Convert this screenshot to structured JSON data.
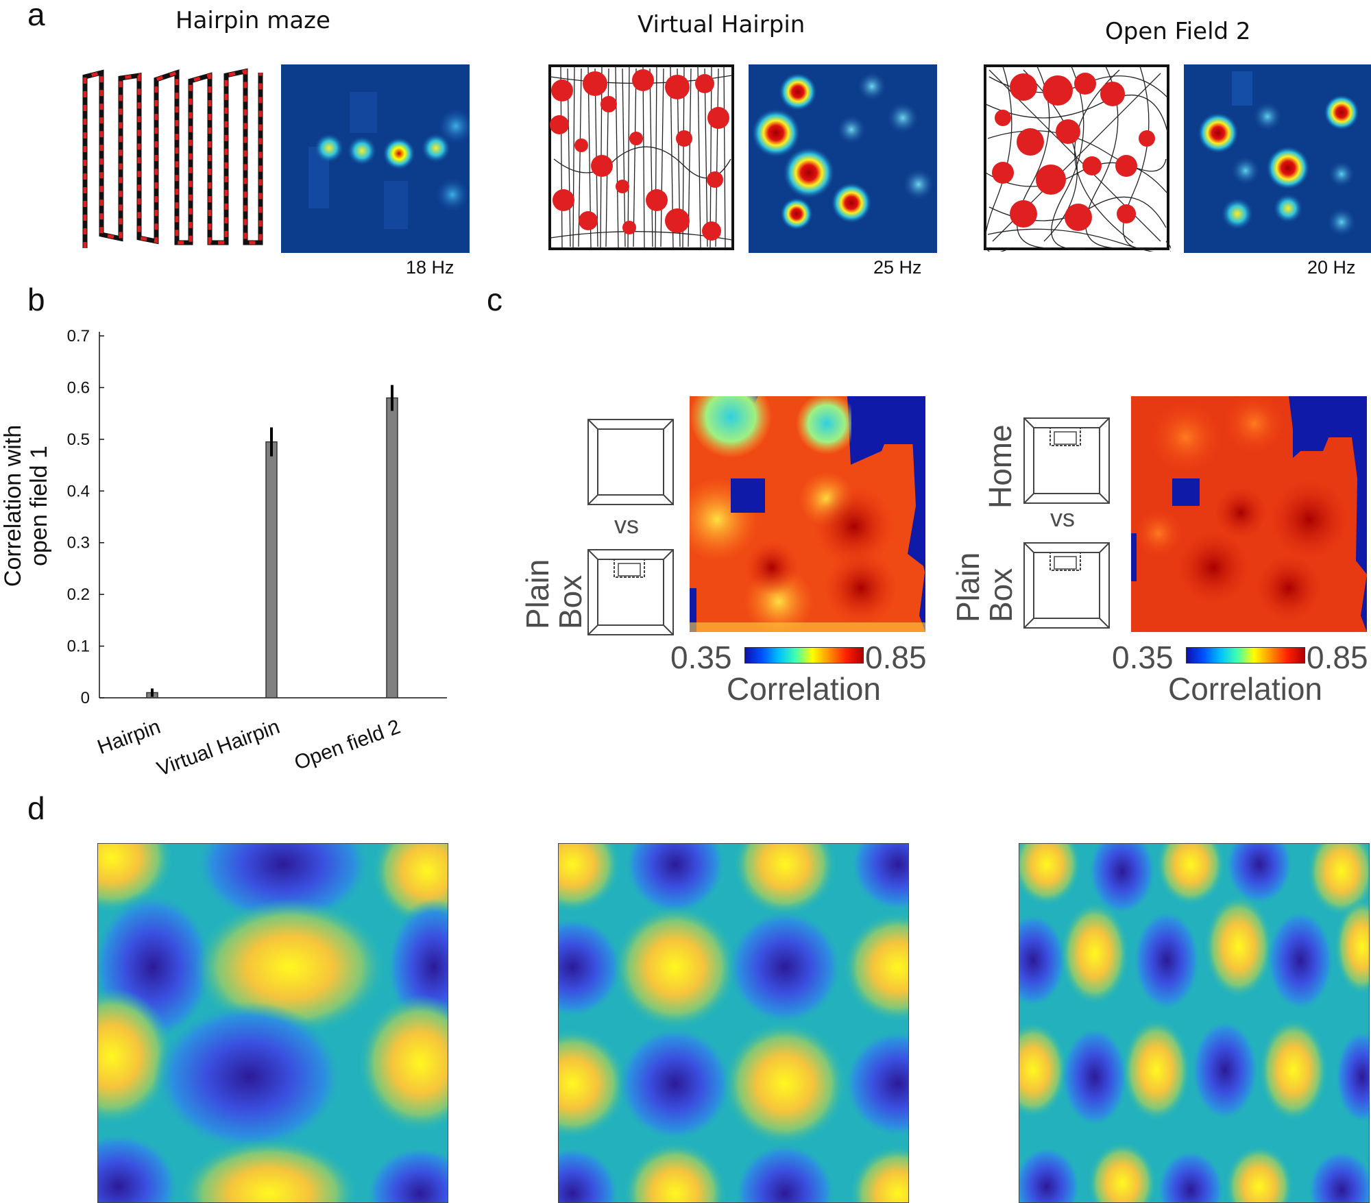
{
  "panels": {
    "a": {
      "letter": "a",
      "conditions": [
        {
          "title": "Hairpin maze",
          "peak": "18 Hz"
        },
        {
          "title": "Virtual Hairpin",
          "peak": "25 Hz"
        },
        {
          "title": "Open Field 2",
          "peak": "20 Hz"
        }
      ]
    },
    "b": {
      "letter": "b"
    },
    "c": {
      "letter": "c",
      "left": {
        "top_label": "",
        "bottom_label_line1": "Plain",
        "bottom_label_line2": "Box",
        "vs": "vs"
      },
      "right": {
        "top_label": "Home",
        "bottom_label_line1": "Plain",
        "bottom_label_line2": "Box",
        "vs": "vs"
      },
      "colorbar": {
        "min": "0.35",
        "max": "0.85",
        "label": "Correlation"
      }
    },
    "d": {
      "letter": "d"
    }
  },
  "chart_data": {
    "type": "bar",
    "categories": [
      "Hairpin",
      "Virtual Hairpin",
      "Open field 2"
    ],
    "values": [
      0.01,
      0.495,
      0.58
    ],
    "errors": [
      0.008,
      0.028,
      0.025
    ],
    "ylabel_line1": "Correlation with",
    "ylabel_line2": "open field 1",
    "ylim": [
      0,
      0.7
    ],
    "yticks": [
      "0",
      "0.1",
      "0.2",
      "0.3",
      "0.4",
      "0.5",
      "0.6",
      "0.7"
    ],
    "colors": {
      "bar": "#808080",
      "error": "#000000"
    }
  }
}
